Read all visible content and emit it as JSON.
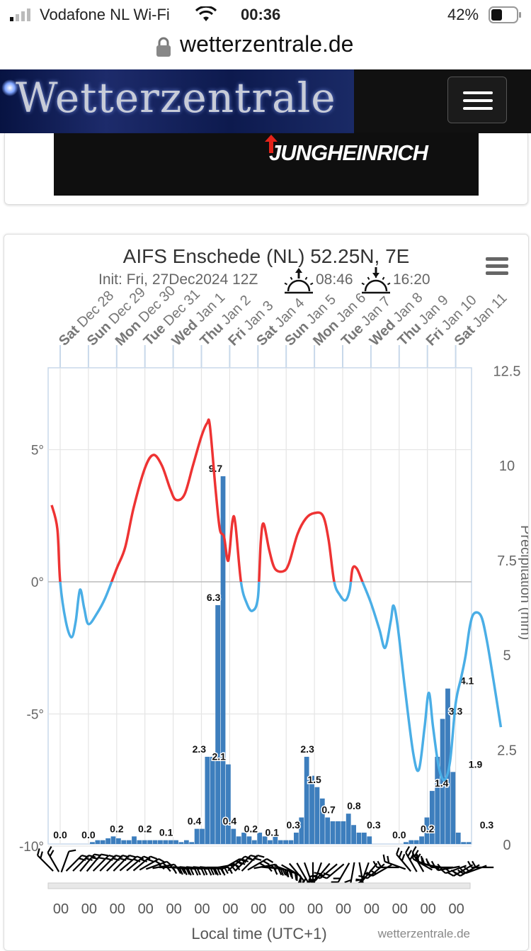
{
  "status_bar": {
    "carrier": "Vodafone NL Wi-Fi",
    "time": "00:36",
    "battery": "42%"
  },
  "browser": {
    "url": "wetterzentrale.de"
  },
  "site": {
    "logo": "Wetterzentrale",
    "menu_icon": "hamburger-icon"
  },
  "ad": {
    "text": "JUNGHEINRICH",
    "brand_color": "#e4231a"
  },
  "chart_menu_icon": "hamburger-icon",
  "chart_data": {
    "type": "line",
    "title": "AIFS Enschede (NL) 52.25N, 7E",
    "subtitle": {
      "init": "Init: Fri, 27Dec2024 12Z",
      "sunrise": "08:46",
      "sunset": "16:20"
    },
    "xlabel": "Local time (UTC+1)",
    "credit": "wetterzentrale.de",
    "days": [
      {
        "dow": "Sat",
        "date": "Dec 28"
      },
      {
        "dow": "Sun",
        "date": "Dec 29"
      },
      {
        "dow": "Mon",
        "date": "Dec 30"
      },
      {
        "dow": "Tue",
        "date": "Dec 31"
      },
      {
        "dow": "Wed",
        "date": "Jan 1"
      },
      {
        "dow": "Thu",
        "date": "Jan 2"
      },
      {
        "dow": "Fri",
        "date": "Jan 3"
      },
      {
        "dow": "Sat",
        "date": "Jan 4"
      },
      {
        "dow": "Sun",
        "date": "Jan 5"
      },
      {
        "dow": "Mon",
        "date": "Jan 6"
      },
      {
        "dow": "Tue",
        "date": "Jan 7"
      },
      {
        "dow": "Wed",
        "date": "Jan 8"
      },
      {
        "dow": "Thu",
        "date": "Jan 9"
      },
      {
        "dow": "Fri",
        "date": "Jan 10"
      },
      {
        "dow": "Sat",
        "date": "Jan 11"
      }
    ],
    "x_tick_labels": [
      "00",
      "00",
      "00",
      "00",
      "00",
      "00",
      "00",
      "00",
      "00",
      "00",
      "00",
      "00",
      "00",
      "00",
      "00"
    ],
    "y_left": {
      "ticks": [
        "5°",
        "0°",
        "-5°",
        "-10°"
      ],
      "tick_values": [
        5,
        0,
        -5,
        -10
      ],
      "range": [
        -10,
        8
      ]
    },
    "y_right": {
      "label": "Precipitation (mm)",
      "ticks": [
        "12.5",
        "10",
        "7.5",
        "5",
        "2.5",
        "0"
      ],
      "tick_values": [
        12.5,
        10,
        7.5,
        5,
        2.5,
        0
      ],
      "range": [
        0,
        12.5
      ]
    },
    "x_range_days": [
      -0.4,
      15.0
    ],
    "temperature": {
      "name": "Temperature",
      "warm_color": "#ee3333",
      "cold_color": "#4aaee6",
      "points": [
        [
          -0.3,
          2.9
        ],
        [
          -0.1,
          2.0
        ],
        [
          0.0,
          0.0
        ],
        [
          0.2,
          -1.5
        ],
        [
          0.4,
          -2.1
        ],
        [
          0.55,
          -1.5
        ],
        [
          0.7,
          -0.3
        ],
        [
          0.85,
          -1.0
        ],
        [
          1.0,
          -1.6
        ],
        [
          1.3,
          -1.2
        ],
        [
          1.6,
          -0.6
        ],
        [
          2.0,
          0.5
        ],
        [
          2.3,
          1.3
        ],
        [
          2.6,
          2.8
        ],
        [
          3.0,
          4.3
        ],
        [
          3.3,
          4.8
        ],
        [
          3.6,
          4.4
        ],
        [
          3.9,
          3.5
        ],
        [
          4.1,
          3.1
        ],
        [
          4.4,
          3.3
        ],
        [
          4.7,
          4.4
        ],
        [
          5.0,
          5.5
        ],
        [
          5.2,
          6.0
        ],
        [
          5.3,
          5.9
        ],
        [
          5.5,
          3.5
        ],
        [
          5.65,
          2.0
        ],
        [
          5.8,
          1.7
        ],
        [
          5.95,
          0.8
        ],
        [
          6.1,
          2.3
        ],
        [
          6.2,
          2.2
        ],
        [
          6.4,
          0.0
        ],
        [
          6.6,
          -0.8
        ],
        [
          6.8,
          -1.1
        ],
        [
          7.0,
          -0.6
        ],
        [
          7.1,
          1.5
        ],
        [
          7.2,
          2.2
        ],
        [
          7.4,
          1.2
        ],
        [
          7.6,
          0.5
        ],
        [
          7.9,
          0.4
        ],
        [
          8.1,
          0.7
        ],
        [
          8.4,
          1.8
        ],
        [
          8.7,
          2.4
        ],
        [
          9.0,
          2.6
        ],
        [
          9.3,
          2.5
        ],
        [
          9.5,
          1.6
        ],
        [
          9.7,
          0.0
        ],
        [
          9.9,
          -0.5
        ],
        [
          10.1,
          -0.7
        ],
        [
          10.25,
          -0.3
        ],
        [
          10.35,
          0.5
        ],
        [
          10.5,
          0.5
        ],
        [
          10.7,
          0.0
        ],
        [
          11.0,
          -0.8
        ],
        [
          11.3,
          -1.8
        ],
        [
          11.5,
          -2.5
        ],
        [
          11.7,
          -1.5
        ],
        [
          11.8,
          -0.9
        ],
        [
          11.95,
          -1.7
        ],
        [
          12.2,
          -4.0
        ],
        [
          12.5,
          -6.5
        ],
        [
          12.7,
          -7.1
        ],
        [
          12.9,
          -5.5
        ],
        [
          13.05,
          -4.2
        ],
        [
          13.2,
          -5.5
        ],
        [
          13.4,
          -7.0
        ],
        [
          13.6,
          -7.5
        ],
        [
          13.8,
          -6.8
        ],
        [
          14.0,
          -4.6
        ],
        [
          14.2,
          -3.6
        ],
        [
          14.35,
          -2.8
        ],
        [
          14.5,
          -1.7
        ],
        [
          14.65,
          -1.2
        ],
        [
          14.9,
          -1.3
        ],
        [
          15.1,
          -2.2
        ],
        [
          15.35,
          -3.8
        ],
        [
          15.6,
          -5.5
        ]
      ]
    },
    "precipitation": {
      "name": "Precipitation",
      "color": "#3d7ebd",
      "bars": [
        0.0,
        0.0,
        0.0,
        0.0,
        0.0,
        0.0,
        0.0,
        0.0,
        0.05,
        0.1,
        0.1,
        0.15,
        0.2,
        0.15,
        0.1,
        0.1,
        0.2,
        0.1,
        0.1,
        0.1,
        0.1,
        0.1,
        0.1,
        0.1,
        0.1,
        0.05,
        0.1,
        0.05,
        0.4,
        0.4,
        2.3,
        2.3,
        6.3,
        9.7,
        2.1,
        0.4,
        0.2,
        0.3,
        0.2,
        0.1,
        0.3,
        0.2,
        0.1,
        0.2,
        0.1,
        0.1,
        0.1,
        0.3,
        0.7,
        2.3,
        1.8,
        1.5,
        1.2,
        0.7,
        0.6,
        0.6,
        0.6,
        0.8,
        0.5,
        0.3,
        0.3,
        0.2,
        0.0,
        0.0,
        0.0,
        0.0,
        0.0,
        0.0,
        0.05,
        0.1,
        0.1,
        0.2,
        0.7,
        1.4,
        2.3,
        3.3,
        4.1,
        1.9,
        0.3,
        0.05,
        0.05
      ],
      "labels": [
        {
          "day": 0.0,
          "text": "0.0"
        },
        {
          "day": 1.0,
          "text": "0.0"
        },
        {
          "day": 2.0,
          "text": "0.2"
        },
        {
          "day": 3.0,
          "text": "0.2"
        },
        {
          "day": 3.75,
          "text": "0.1"
        },
        {
          "day": 4.75,
          "text": "0.4"
        },
        {
          "day": 4.92,
          "text": "2.3"
        },
        {
          "day": 5.43,
          "text": "6.3"
        },
        {
          "day": 5.5,
          "text": "9.7"
        },
        {
          "day": 5.62,
          "text": "2.1"
        },
        {
          "day": 6.0,
          "text": "0.4"
        },
        {
          "day": 6.75,
          "text": "0.2"
        },
        {
          "day": 7.5,
          "text": "0.1"
        },
        {
          "day": 8.25,
          "text": "0.3"
        },
        {
          "day": 8.75,
          "text": "2.3"
        },
        {
          "day": 9.0,
          "text": "1.5"
        },
        {
          "day": 9.5,
          "text": "0.7"
        },
        {
          "day": 10.4,
          "text": "0.8"
        },
        {
          "day": 11.1,
          "text": "0.3"
        },
        {
          "day": 12.0,
          "text": "0.0"
        },
        {
          "day": 13.0,
          "text": "0.2"
        },
        {
          "day": 13.5,
          "text": "1.4"
        },
        {
          "day": 14.0,
          "text": "3.3"
        },
        {
          "day": 14.4,
          "text": "4.1"
        },
        {
          "day": 14.7,
          "text": "1.9"
        },
        {
          "day": 15.1,
          "text": "0.3"
        }
      ]
    },
    "wind_barbs": {
      "name": "Wind",
      "color": "#000000",
      "directions_deg": [
        315,
        330,
        20,
        45,
        45,
        40,
        40,
        45,
        45,
        45,
        45,
        50,
        50,
        50,
        60,
        70,
        80,
        90,
        95,
        95,
        95,
        95,
        95,
        95,
        90,
        80,
        60,
        50,
        45,
        45,
        60,
        80,
        95,
        100,
        110,
        120,
        140,
        150,
        160,
        180,
        200,
        220,
        230,
        230,
        210,
        190,
        170,
        200,
        220,
        230,
        240,
        270,
        290,
        320,
        330,
        330,
        300,
        290,
        280,
        270,
        260,
        250,
        240,
        240,
        250,
        270
      ],
      "speeds": [
        3,
        3,
        2,
        3,
        3,
        4,
        4,
        4,
        4,
        4,
        4,
        4,
        4,
        4,
        4,
        5,
        5,
        5,
        5,
        5,
        4,
        4,
        4,
        5,
        5,
        5,
        5,
        5,
        4,
        4,
        5,
        5,
        6,
        6,
        5,
        4,
        4,
        4,
        4,
        4,
        5,
        5,
        4,
        4,
        3,
        3,
        3,
        4,
        4,
        4,
        4,
        4,
        4,
        5,
        5,
        5,
        4,
        4,
        4,
        4,
        4,
        4,
        4,
        4,
        3,
        3
      ]
    }
  }
}
